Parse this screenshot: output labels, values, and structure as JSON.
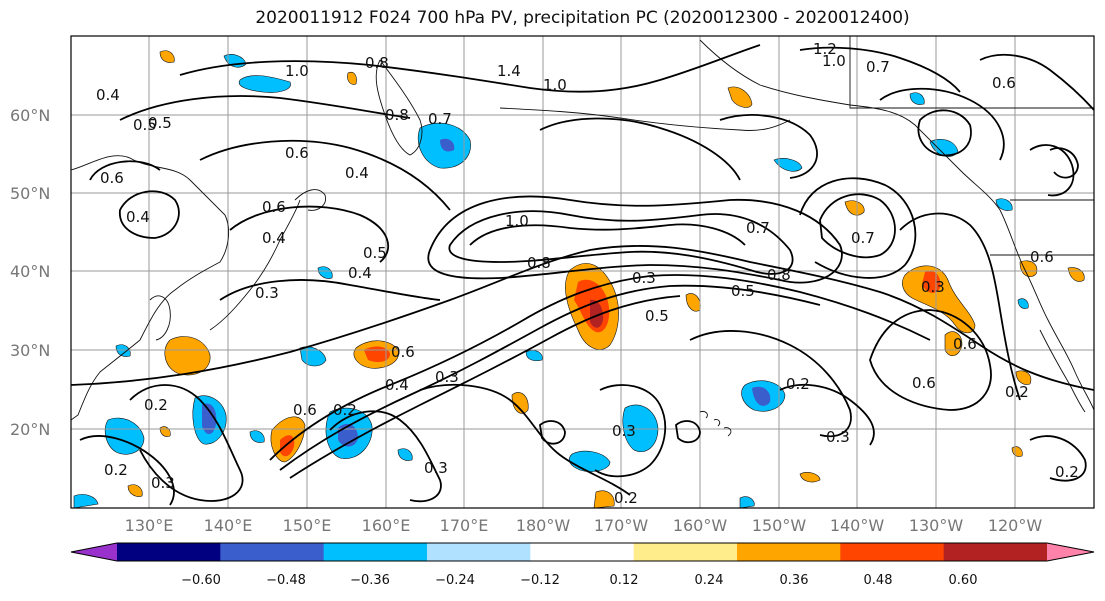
{
  "title": "2020011912 F024 700 hPa PV, precipitation PC (2020012300 - 2020012400)",
  "map": {
    "lat_labels": [
      "60°N",
      "50°N",
      "40°N",
      "30°N",
      "20°N"
    ],
    "lon_labels": [
      "130°E",
      "140°E",
      "150°E",
      "160°E",
      "170°E",
      "180°W",
      "170°W",
      "160°W",
      "150°W",
      "140°W",
      "130°W",
      "120°W"
    ],
    "contour_labels": [
      "1.0",
      "0.8",
      "1.4",
      "1.0",
      "1.2",
      "1.0",
      "0.7",
      "0.6",
      "0.4",
      "0.5",
      "0.8",
      "0.7",
      "0.6",
      "0.4",
      "0.6",
      "0.4",
      "0.6",
      "0.5",
      "0.4",
      "0.4",
      "0.5",
      "0.3",
      "1.0",
      "0.8",
      "0.7",
      "0.7",
      "0.8",
      "0.3",
      "0.5",
      "0.5",
      "0.3",
      "0.6",
      "0.6",
      "0.4",
      "0.3",
      "0.6",
      "0.2",
      "0.2",
      "0.6",
      "0.3",
      "0.3",
      "0.2",
      "0.3",
      "0.2",
      "0.3",
      "0.2",
      "0.2",
      "0.6",
      "0.2"
    ],
    "colors": {
      "coast": "#111111",
      "contour": "#000000",
      "grid": "#9a9a9a"
    }
  },
  "colorbar": {
    "tick_labels": [
      "−0.60",
      "−0.48",
      "−0.36",
      "−0.24",
      "−0.12",
      "0.12",
      "0.24",
      "0.36",
      "0.48",
      "0.60"
    ],
    "colors": [
      "#9932cc",
      "#000080",
      "#3a5fcd",
      "#00bfff",
      "#b0e2ff",
      "#ffffff",
      "#ffec8b",
      "#ffa500",
      "#ff4500",
      "#b22222",
      "#ff82ab"
    ]
  }
}
